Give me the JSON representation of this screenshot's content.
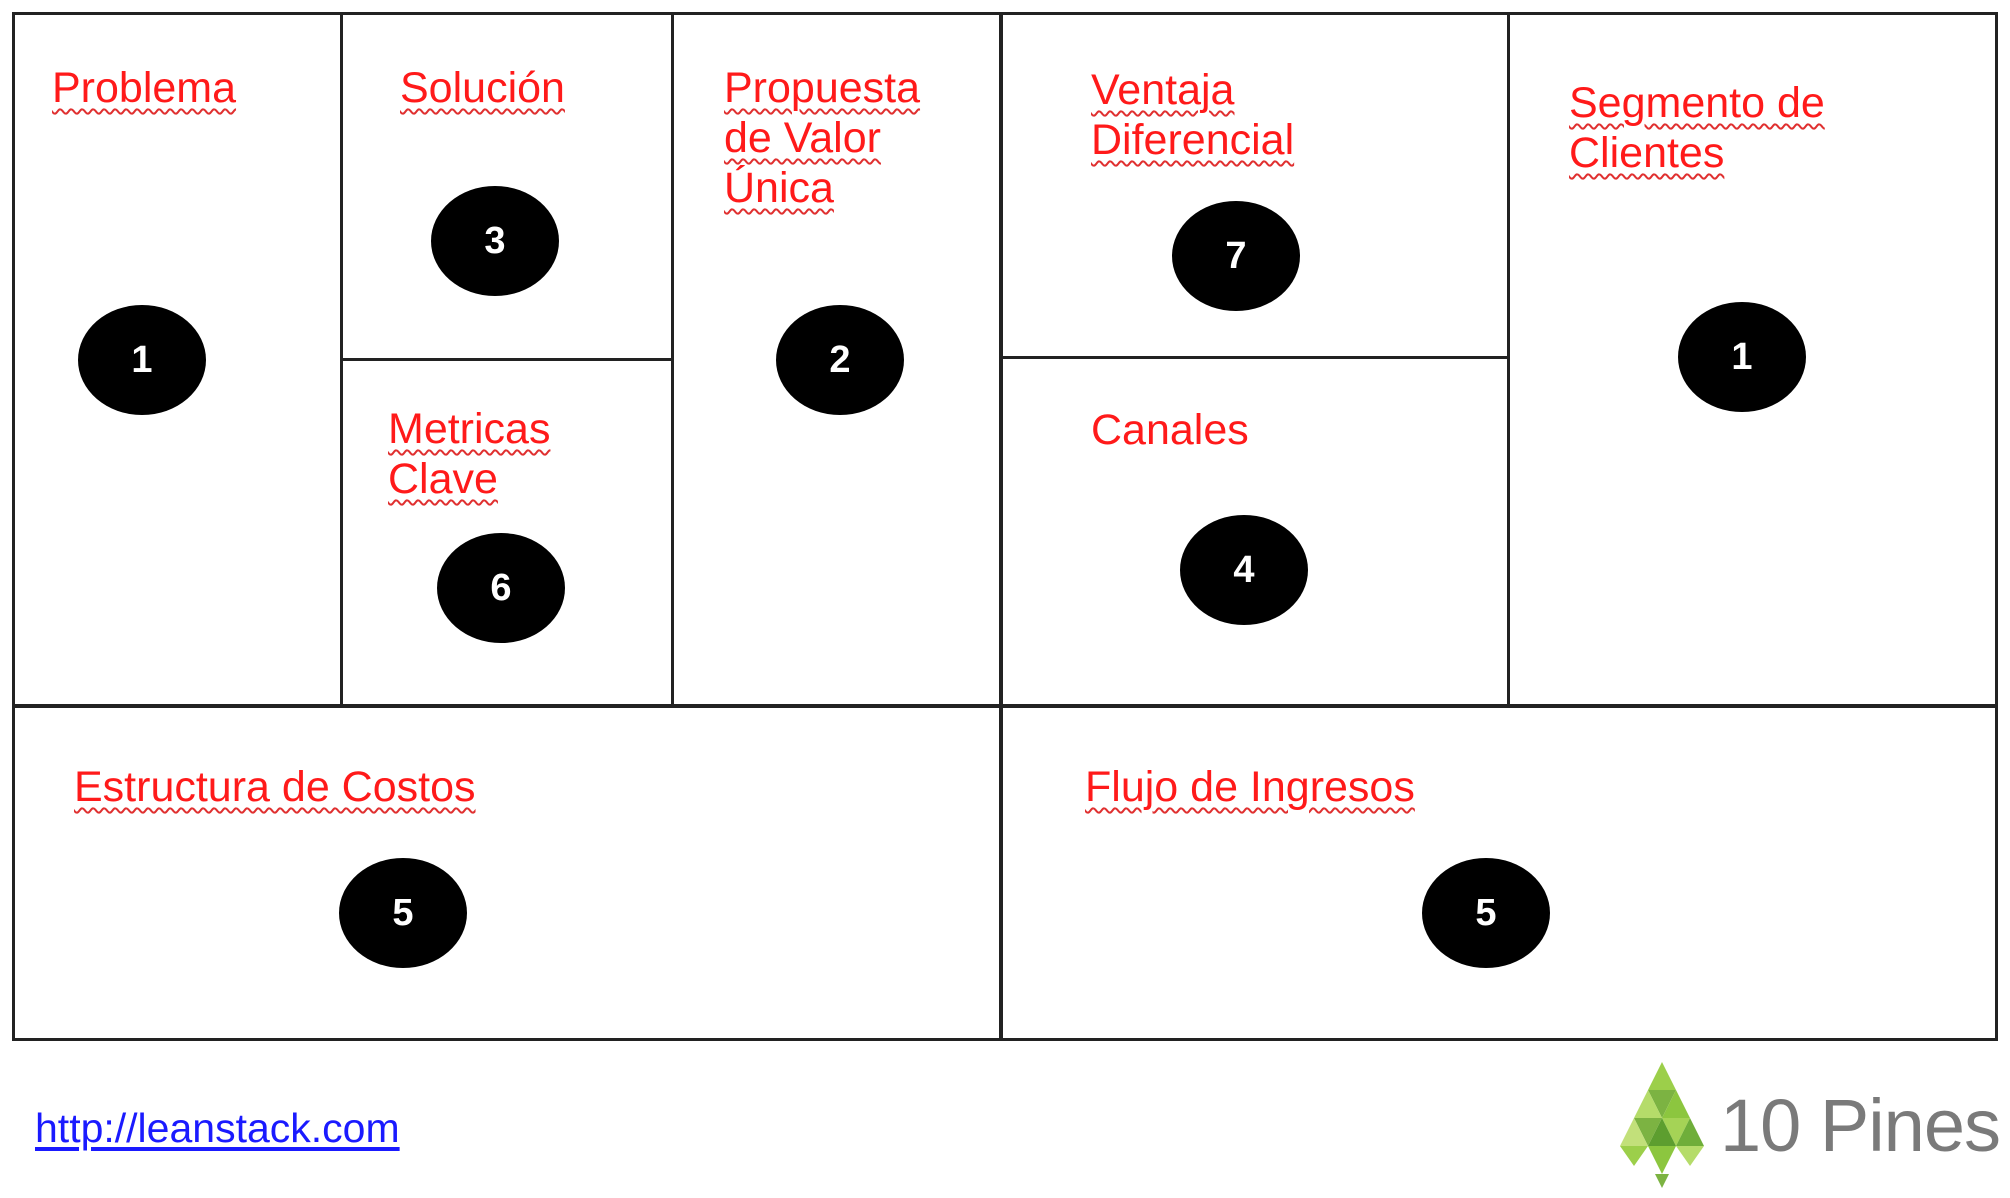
{
  "canvas": {
    "cells": {
      "problema": {
        "lines": [
          "Problema"
        ],
        "number": "1"
      },
      "solucion": {
        "lines": [
          "Solución"
        ],
        "number": "3"
      },
      "metricas": {
        "lines": [
          "Metricas",
          "Clave"
        ],
        "number": "6"
      },
      "propuesta": {
        "lines": [
          "Propuesta",
          "de Valor",
          "Única"
        ],
        "number": "2"
      },
      "ventaja": {
        "lines": [
          "Ventaja",
          "Diferencial"
        ],
        "number": "7"
      },
      "canales": {
        "lines": [
          "Canales"
        ],
        "number": "4"
      },
      "segmento": {
        "lines": [
          "Segmento de",
          "Clientes"
        ],
        "number": "1"
      },
      "costos": {
        "lines": [
          "Estructura de Costos"
        ],
        "number": "5"
      },
      "ingresos": {
        "lines": [
          "Flujo de Ingresos"
        ],
        "number": "5"
      }
    }
  },
  "footer": {
    "link": "http://leanstack.com",
    "logo_text": "10 Pines"
  },
  "colors": {
    "label": "#ff1a1a",
    "link": "#1a1aff",
    "badge": "#000000",
    "logo_green": "#8cc63f"
  }
}
